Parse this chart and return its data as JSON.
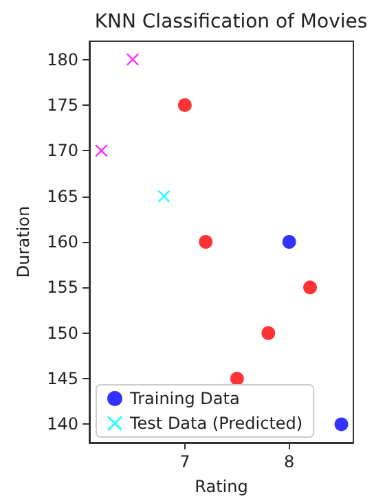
{
  "chart_data": {
    "type": "scatter",
    "title": "KNN Classification of Movies",
    "xlabel": "Rating",
    "ylabel": "Duration",
    "series": [
      {
        "name": "Training Data",
        "color": "#0000ff",
        "marker": "circle",
        "x": [
          7.0,
          7.2,
          8.2,
          7.8,
          7.5,
          8.0,
          8.5
        ],
        "values": [
          175,
          160,
          155,
          150,
          145,
          160,
          140
        ],
        "colors": [
          "#ff0000",
          "#ff0000",
          "#ff0000",
          "#ff0000",
          "#ff0000",
          "#0000ff",
          "#0000ff"
        ]
      },
      {
        "name": "Test Data (Predicted)",
        "color": "#00ffff",
        "marker": "cross",
        "x": [
          6.5,
          6.2,
          6.8
        ],
        "values": [
          180,
          170,
          165
        ],
        "colors": [
          "#ff00ff",
          "#ff00ff",
          "#00ffff"
        ]
      }
    ],
    "xlim": [
      6.085,
      8.615
    ],
    "xticks": [
      7,
      8
    ],
    "ylim": [
      138,
      182
    ],
    "yticks": [
      140,
      145,
      150,
      155,
      160,
      165,
      170,
      175,
      180
    ],
    "grid": false,
    "legend": "bottom left"
  }
}
